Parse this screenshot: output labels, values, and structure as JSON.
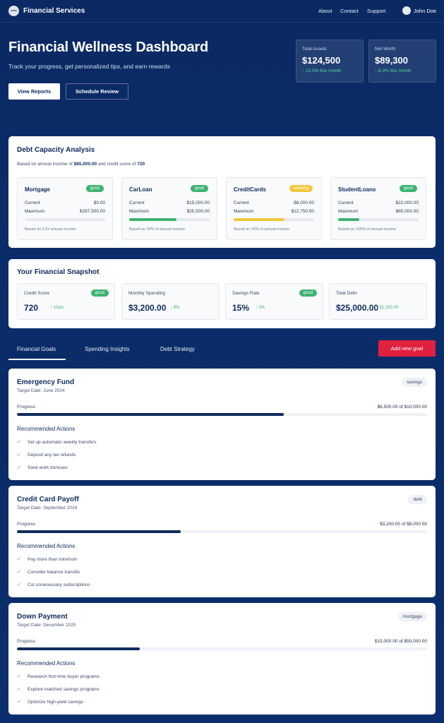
{
  "nav": {
    "brand": "Financial Services",
    "links": [
      "About",
      "Contact",
      "Support"
    ],
    "user": "John Doe"
  },
  "hero": {
    "title": "Financial Wellness Dashboard",
    "subtitle": "Track your progress, get personalized tips, and earn rewards",
    "primary_button": "View Reports",
    "secondary_button": "Schedule Review",
    "stats": [
      {
        "label": "Total Assets",
        "value": "$124,500",
        "change": "↑ 12.5% this month"
      },
      {
        "label": "Net Worth",
        "value": "$89,300",
        "change": "↑ 8.3% this month"
      }
    ]
  },
  "debt": {
    "title": "Debt Capacity Analysis",
    "basis_prefix": "Based on annual income of",
    "income": "$85,000.00",
    "basis_mid": "and credit score of",
    "score": "720",
    "current_label": "Current",
    "maximum_label": "Maximum",
    "cards": [
      {
        "name": "Mortgage",
        "status": "good",
        "current": "$0.00",
        "maximum": "$297,500.00",
        "utilization": 0,
        "note": "Based on 3.5x annual income"
      },
      {
        "name": "CarLoan",
        "status": "good",
        "current": "$15,000.00",
        "maximum": "$25,500.00",
        "utilization": 0.59,
        "note": "Based on 30% of annual income"
      },
      {
        "name": "CreditCards",
        "status": "warning",
        "current": "$8,000.00",
        "maximum": "$12,750.00",
        "utilization": 0.63,
        "note": "Based on 15% of annual income"
      },
      {
        "name": "StudentLoans",
        "status": "good",
        "current": "$22,000.00",
        "maximum": "$85,000.00",
        "utilization": 0.26,
        "note": "Based on 100% of annual income"
      }
    ]
  },
  "snapshot": {
    "title": "Your Financial Snapshot",
    "cards": [
      {
        "label": "Credit Score",
        "value": "720",
        "change": "↑ 10pts",
        "badge": "good"
      },
      {
        "label": "Monthly Spending",
        "value": "$3,200.00",
        "change": "↓ 8%",
        "badge": ""
      },
      {
        "label": "Savings Rate",
        "value": "15%",
        "change": "↑ 3%",
        "badge": "good"
      },
      {
        "label": "Total Debt",
        "value": "$25,000.00",
        "change": "↓ $1,200.00",
        "badge": ""
      }
    ]
  },
  "tabs": [
    "Financial Goals",
    "Spending Insights",
    "Debt Strategy"
  ],
  "add_goal_button": "Add new goal",
  "progress_label": "Progress",
  "recommended_label": "Recommended Actions",
  "goals": [
    {
      "name": "Emergency Fund",
      "date": "Target Date: June 2024",
      "tag": "savings",
      "amount": "$6,500.00 of $10,000.00",
      "progress": 0.65,
      "actions": [
        "Set up automatic weekly transfers",
        "Deposit any tax refunds",
        "Save work bonuses"
      ]
    },
    {
      "name": "Credit Card Payoff",
      "date": "Target Date: September 2024",
      "tag": "debt",
      "amount": "$3,200.00 of $8,000.00",
      "progress": 0.4,
      "actions": [
        "Pay more than minimum",
        "Consider balance transfer",
        "Cut unnecessary subscriptions"
      ]
    },
    {
      "name": "Down Payment",
      "date": "Target Date: December 2025",
      "tag": "mortgage",
      "amount": "$15,000.00 of $50,000.00",
      "progress": 0.3,
      "actions": [
        "Research first-time buyer programs",
        "Explore matched savings programs",
        "Optimize high-yield savings"
      ]
    }
  ],
  "colors": {
    "accent": "#e0203f",
    "good": "#3cb36f",
    "warning": "#f0c83a",
    "navy": "#0e2b5c"
  }
}
